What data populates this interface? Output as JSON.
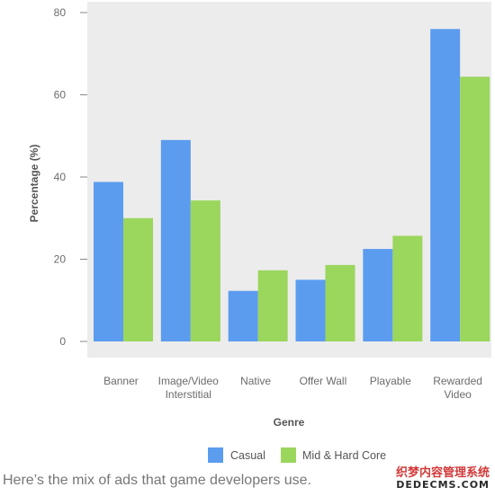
{
  "chart_data": {
    "type": "bar",
    "categories": [
      [
        "Banner"
      ],
      [
        "Image/Video",
        "Interstitial"
      ],
      [
        "Native"
      ],
      [
        "Offer Wall"
      ],
      [
        "Playable"
      ],
      [
        "Rewarded",
        "Video"
      ]
    ],
    "series": [
      {
        "name": "Casual",
        "color": "#5b9cef",
        "values": [
          38.8,
          49,
          12.3,
          15,
          22.5,
          76
        ]
      },
      {
        "name": "Mid & Hard Core",
        "color": "#9bd65d",
        "values": [
          30,
          34.3,
          17.3,
          18.6,
          25.7,
          64.4
        ]
      }
    ],
    "xlabel": "Genre",
    "ylabel": "Percentage (%)",
    "ylim": [
      0,
      80
    ],
    "yticks": [
      "0",
      "20",
      "40",
      "60",
      "80"
    ],
    "grid": false,
    "legend": "bottom"
  },
  "caption": "Here’s the mix of ads that game developers use.",
  "watermark": {
    "line1": "织梦内容管理系统",
    "line2": "DEDECMS.COM"
  }
}
